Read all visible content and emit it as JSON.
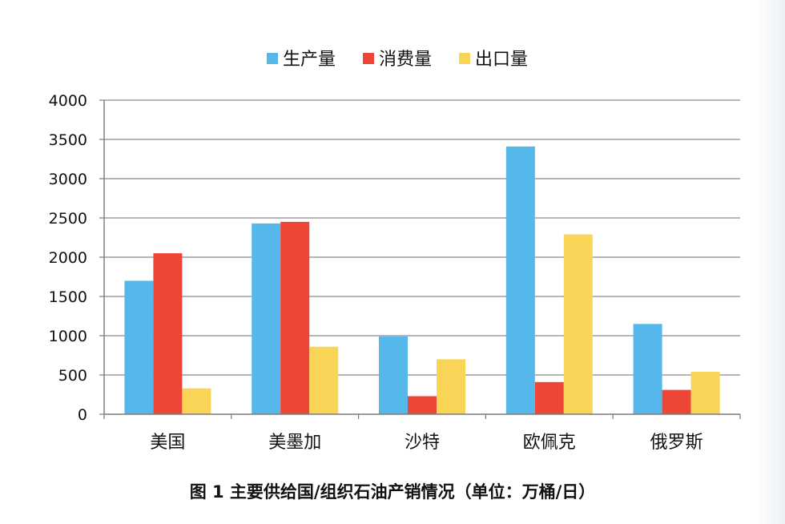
{
  "chart_data": {
    "type": "bar",
    "title": "",
    "categories": [
      "美国",
      "美墨加",
      "沙特",
      "欧佩克",
      "俄罗斯"
    ],
    "series": [
      {
        "name": "生产量",
        "color": "#56b8ea",
        "values": [
          1700,
          2430,
          990,
          3410,
          1150
        ]
      },
      {
        "name": "消费量",
        "color": "#ee4636",
        "values": [
          2050,
          2450,
          230,
          410,
          310
        ]
      },
      {
        "name": "出口量",
        "color": "#f9d557",
        "values": [
          330,
          860,
          700,
          2290,
          540
        ]
      }
    ],
    "xlabel": "",
    "ylabel": "",
    "ylim": [
      0,
      4000
    ],
    "yticks": [
      0,
      500,
      1000,
      1500,
      2000,
      2500,
      3000,
      3500,
      4000
    ],
    "grid": true,
    "legend_position": "top-center"
  },
  "caption": "图 1  主要供给国/组织石油产销情况（单位：万桶/日）"
}
